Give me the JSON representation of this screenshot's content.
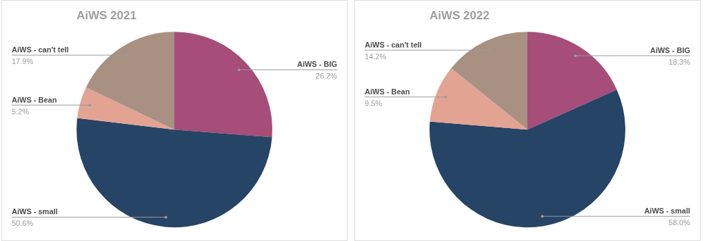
{
  "chart_data": [
    {
      "type": "pie",
      "title": "AiWS 2021",
      "categories": [
        "AiWS - BIG",
        "AiWS - small",
        "AiWS - Bean",
        "AiWS - can't tell"
      ],
      "values": [
        26.2,
        50.6,
        5.2,
        17.9
      ],
      "value_labels": [
        "26.2%",
        "50.6%",
        "5.2%",
        "17.9%"
      ],
      "colors": [
        "#a64d79",
        "#264466",
        "#e3a393",
        "#a89082"
      ],
      "data_labels": true,
      "legend": false
    },
    {
      "type": "pie",
      "title": "AiWS 2022",
      "categories": [
        "AiWS - BIG",
        "AiWS - small",
        "AiWS - Bean",
        "AiWS - can't tell"
      ],
      "values": [
        18.3,
        58.0,
        9.5,
        14.2
      ],
      "value_labels": [
        "18.3%",
        "58.0%",
        "9.5%",
        "14.2%"
      ],
      "colors": [
        "#a64d79",
        "#264466",
        "#e3a393",
        "#a89082"
      ],
      "data_labels": true,
      "legend": false
    }
  ]
}
